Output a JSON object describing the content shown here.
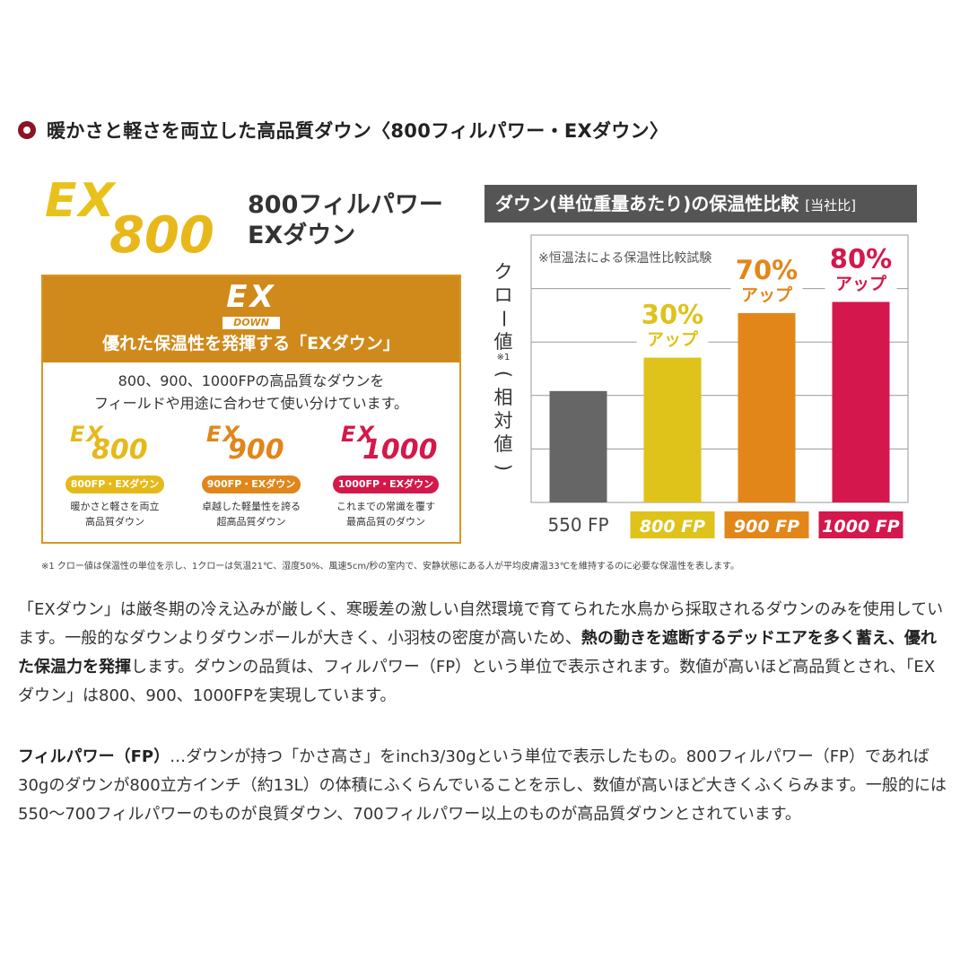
{
  "section": {
    "heading": "暖かさと軽さを両立した高品質ダウン〈800フィルパワー・EXダウン〉"
  },
  "main_logo": {
    "ex": "EX",
    "num": "800"
  },
  "product": {
    "title_line1": "800フィルパワー",
    "title_line2": "EXダウン"
  },
  "infobox": {
    "logo_ex": "EX",
    "logo_down": "DOWN",
    "title": "優れた保温性を発揮する「EXダウン」",
    "desc_line1": "800、900、1000FPの高品質なダウンを",
    "desc_line2": "フィールドや用途に合わせて使い分けています。",
    "variants": [
      {
        "ex": "EX",
        "num": "800",
        "pill": "800FP・EXダウン",
        "desc1": "暖かさと軽さを両立",
        "desc2": "高品質ダウン",
        "color": "#e6b91a"
      },
      {
        "ex": "EX",
        "num": "900",
        "pill": "900FP・EXダウン",
        "desc1": "卓越した軽量性を誇る",
        "desc2": "超高品質ダウン",
        "color": "#e0861a"
      },
      {
        "ex": "EX",
        "num": "1000",
        "pill": "1000FP・EXダウン",
        "desc1": "これまでの常識を覆す",
        "desc2": "最高品質のダウン",
        "color": "#d4194a"
      }
    ]
  },
  "chart_header": {
    "title": "ダウン(単位重量あたり)の保温性比較",
    "sub": "[当社比]"
  },
  "ylabel": {
    "part1": "クロー値",
    "mark": "※1",
    "part2": "(相対値)"
  },
  "chart_data": {
    "type": "bar",
    "note": "※恒温法による保温性比較試験",
    "categories": [
      "550 FP",
      "800 FP",
      "900 FP",
      "1000 FP"
    ],
    "values": [
      1.0,
      1.3,
      1.7,
      1.8
    ],
    "annotations": [
      {
        "category": "800 FP",
        "pct": "30%",
        "word": "アップ"
      },
      {
        "category": "900 FP",
        "pct": "70%",
        "word": "アップ"
      },
      {
        "category": "1000 FP",
        "pct": "80%",
        "word": "アップ"
      }
    ],
    "ylim": [
      0,
      2.4
    ],
    "gridlines": 4,
    "colors": [
      "#666666",
      "#dfc21a",
      "#e3861a",
      "#d4174d"
    ],
    "label_colors": [
      "#444444",
      "#dfc21a",
      "#e3861a",
      "#d4174d"
    ]
  },
  "footnote": "※1 クロー値は保温性の単位を示し、1クローは気温21℃、湿度50%、風速5cm/秒の室内で、安静状態にある人が平均皮膚温33℃を維持するのに必要な保温性を表します。",
  "para1": {
    "a": "「EXダウン」は厳冬期の冷え込みが厳しく、寒暖差の激しい自然環境で育てられた水鳥から採取されるダウンのみを使用しています。一般的なダウンよりダウンボールが大きく、小羽枝の密度が高いため、",
    "bold": "熱の動きを遮断するデッドエアを多く蓄え、優れた保温力を発揮",
    "b": "します。ダウンの品質は、フィルパワー（FP）という単位で表示されます。数値が高いほど高品質とされ、「EXダウン」は800、900、1000FPを実現しています。"
  },
  "para2": {
    "bold": "フィルパワー（FP）",
    "text": "…ダウンが持つ「かさ高さ」をinch3/30gという単位で表示したもの。800フィルパワー（FP）であれば30gのダウンが800立方インチ（約13L）の体積にふくらんでいることを示し、数値が高いほど大きくふくらみます。一般的には550〜700フィルパワーのものが良質ダウン、700フィルパワー以上のものが高品質ダウンとされています。"
  }
}
